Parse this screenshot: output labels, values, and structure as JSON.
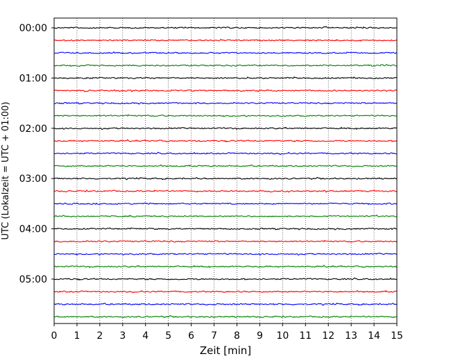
{
  "chart_data": {
    "type": "line",
    "title": "",
    "xlabel": "Zeit  [min]",
    "ylabel": "UTC (Lokalzeit = UTC + 01:00)",
    "xlim": [
      0,
      15
    ],
    "x_ticks": [
      "0",
      "1",
      "2",
      "3",
      "4",
      "5",
      "6",
      "7",
      "8",
      "9",
      "10",
      "11",
      "12",
      "13",
      "14",
      "15"
    ],
    "y_tick_labels": [
      "00:00",
      "01:00",
      "02:00",
      "03:00",
      "04:00",
      "05:00"
    ],
    "trace_interval_minutes": 15,
    "trace_start_times": [
      "00:00",
      "00:15",
      "00:30",
      "00:45",
      "01:00",
      "01:15",
      "01:30",
      "01:45",
      "02:00",
      "02:15",
      "02:30",
      "02:45",
      "03:00",
      "03:15",
      "03:30",
      "03:45",
      "04:00",
      "04:15",
      "04:30",
      "04:45",
      "05:00",
      "05:15",
      "05:30",
      "05:45"
    ],
    "trace_colors": [
      "#000000",
      "#ff0000",
      "#0000ff",
      "#008000"
    ],
    "grid": "vertical dotted",
    "legend": "none"
  }
}
